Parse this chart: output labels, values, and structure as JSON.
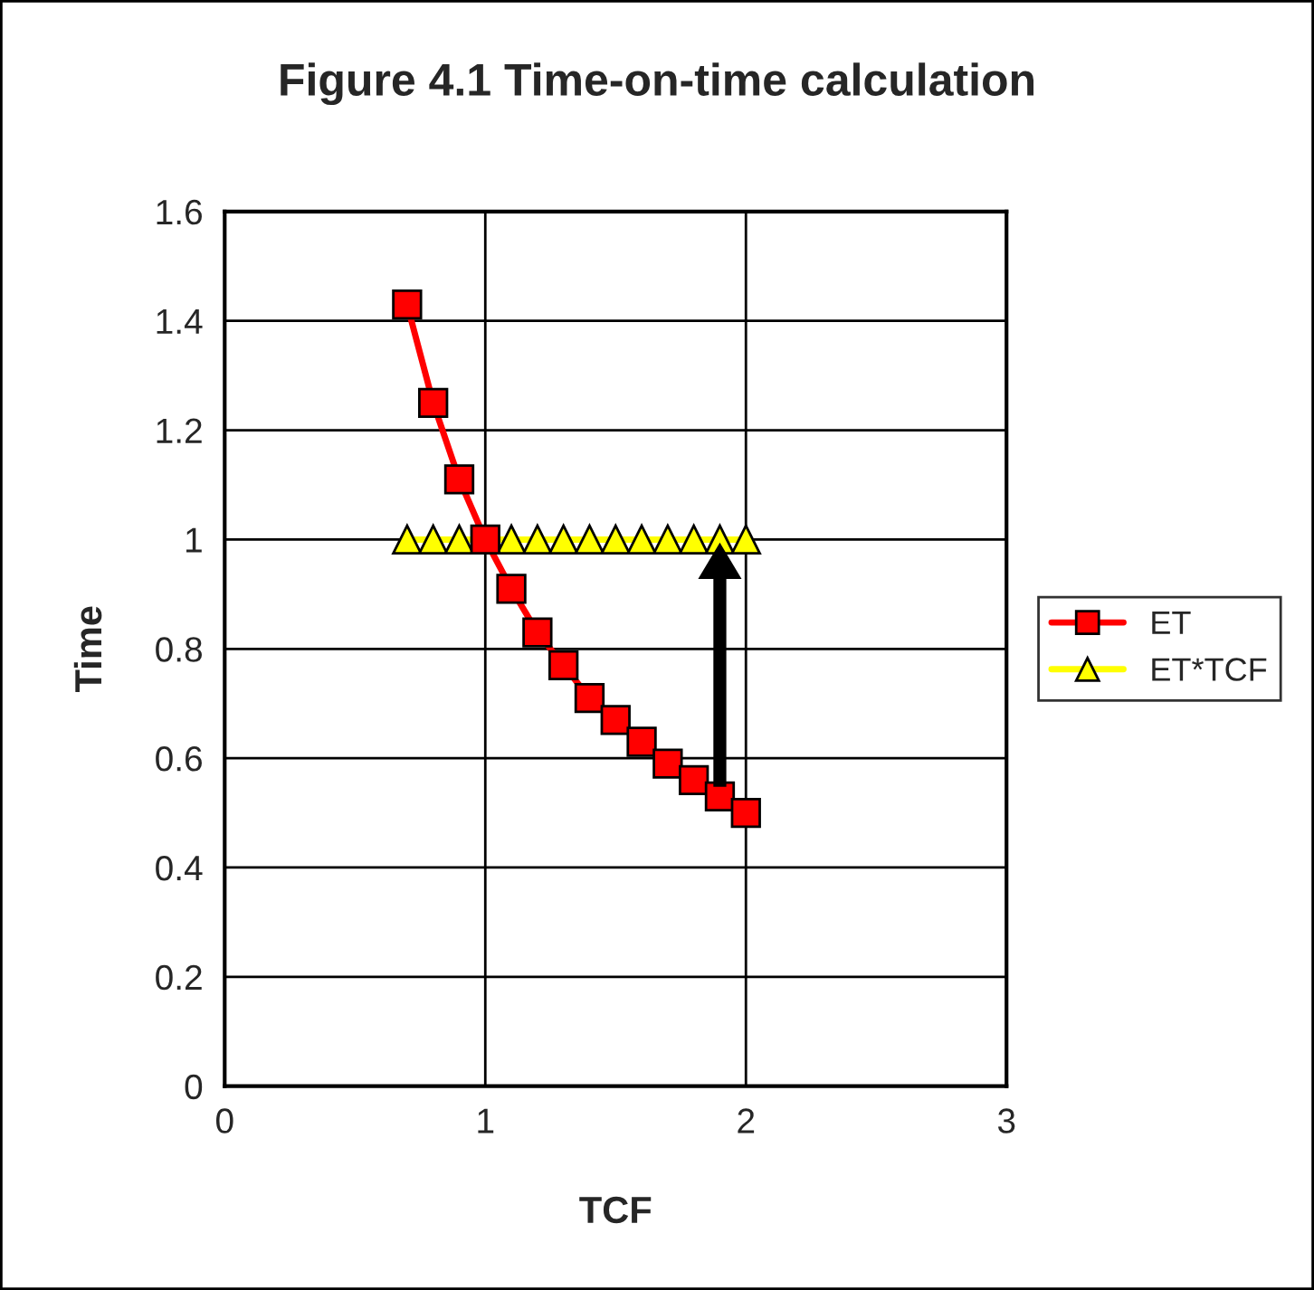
{
  "chart_data": {
    "type": "line",
    "title": "Figure 4.1 Time-on-time calculation",
    "xlabel": "TCF",
    "ylabel": "Time",
    "x": [
      0.7,
      0.8,
      0.9,
      1.0,
      1.1,
      1.2,
      1.3,
      1.4,
      1.5,
      1.6,
      1.7,
      1.8,
      1.9,
      2.0
    ],
    "series": [
      {
        "name": "ET",
        "color": "#ff0000",
        "marker": "square",
        "values": [
          1.43,
          1.25,
          1.11,
          1.0,
          0.91,
          0.83,
          0.77,
          0.71,
          0.67,
          0.63,
          0.59,
          0.56,
          0.53,
          0.5
        ]
      },
      {
        "name": "ET*TCF",
        "color": "#ffff00",
        "marker": "triangle",
        "values": [
          1,
          1,
          1,
          1,
          1,
          1,
          1,
          1,
          1,
          1,
          1,
          1,
          1,
          1
        ]
      }
    ],
    "xlim": [
      0,
      3
    ],
    "xticks": [
      0,
      1,
      2,
      3
    ],
    "ylim": [
      0,
      1.6
    ],
    "yticks": [
      0,
      0.2,
      0.4,
      0.6,
      0.8,
      1,
      1.2,
      1.4,
      1.6
    ],
    "grid": true,
    "legend": "right",
    "line_style": "solid"
  }
}
